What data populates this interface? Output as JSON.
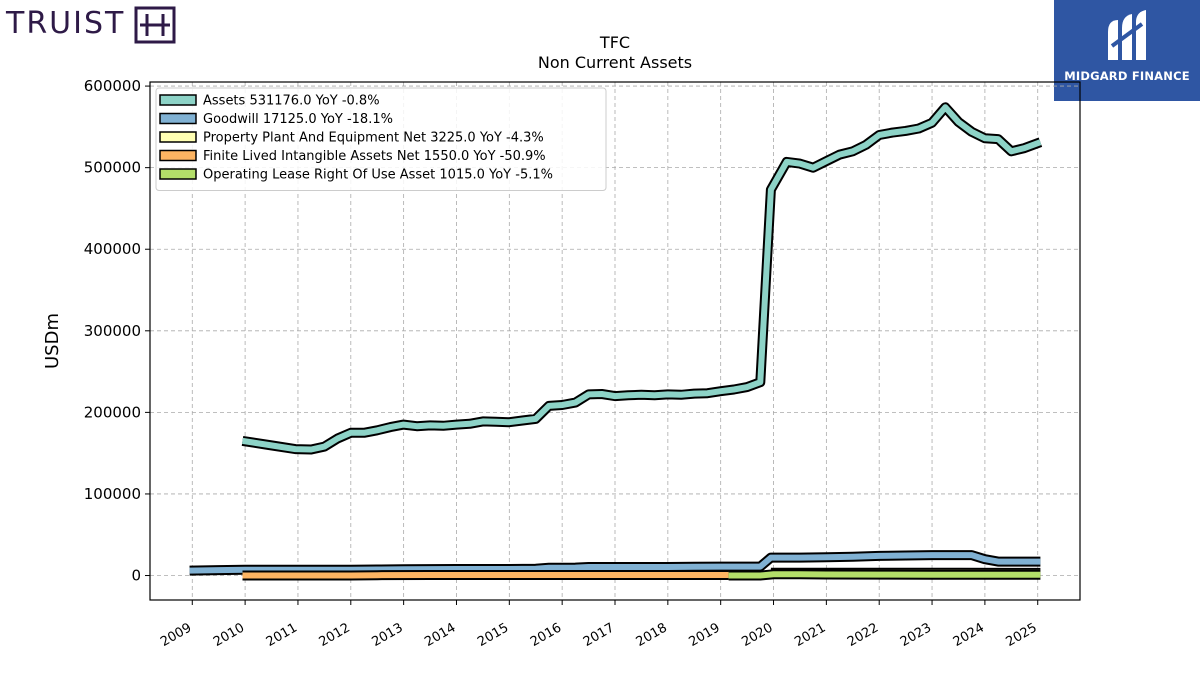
{
  "logos": {
    "left_text": "TRUIST",
    "left_icon": "truist-h-icon",
    "right_text": "MIDGARD FINANCE",
    "right_icon": "midgard-m-icon",
    "left_color": "#2e1a47",
    "right_bg": "#2f56a3"
  },
  "chart_data": {
    "type": "line",
    "title": "TFC",
    "subtitle": "Non Current  Assets",
    "xlabel": "",
    "ylabel": "USDm",
    "xlim": [
      2008.2,
      2025.8
    ],
    "ylim": [
      -30000,
      605000
    ],
    "yticks": [
      0,
      100000,
      200000,
      300000,
      400000,
      500000,
      600000
    ],
    "xticks": [
      2009,
      2010,
      2011,
      2012,
      2013,
      2014,
      2015,
      2016,
      2017,
      2018,
      2019,
      2020,
      2021,
      2022,
      2023,
      2024,
      2025
    ],
    "grid": true,
    "legend_position": "top-left",
    "series": [
      {
        "name": "Assets  531176.0 YoY -0.8%",
        "color": "#8dd3c7",
        "points": [
          [
            2009.95,
            165000
          ],
          [
            2010.45,
            160000
          ],
          [
            2010.95,
            155000
          ],
          [
            2011.25,
            154500
          ],
          [
            2011.5,
            158000
          ],
          [
            2011.75,
            168000
          ],
          [
            2012.0,
            175000
          ],
          [
            2012.25,
            175000
          ],
          [
            2012.5,
            178000
          ],
          [
            2012.75,
            182000
          ],
          [
            2013.0,
            185000
          ],
          [
            2013.25,
            183000
          ],
          [
            2013.5,
            184000
          ],
          [
            2013.75,
            183500
          ],
          [
            2014.0,
            185000
          ],
          [
            2014.25,
            186000
          ],
          [
            2014.5,
            189000
          ],
          [
            2014.75,
            188500
          ],
          [
            2015.0,
            188000
          ],
          [
            2015.25,
            190000
          ],
          [
            2015.5,
            192000
          ],
          [
            2015.75,
            208000
          ],
          [
            2016.0,
            209000
          ],
          [
            2016.25,
            212000
          ],
          [
            2016.5,
            222000
          ],
          [
            2016.75,
            222500
          ],
          [
            2017.0,
            220000
          ],
          [
            2017.25,
            221000
          ],
          [
            2017.5,
            221500
          ],
          [
            2017.75,
            221000
          ],
          [
            2018.0,
            222000
          ],
          [
            2018.25,
            221500
          ],
          [
            2018.5,
            223000
          ],
          [
            2018.75,
            223500
          ],
          [
            2019.0,
            226000
          ],
          [
            2019.25,
            228000
          ],
          [
            2019.5,
            231000
          ],
          [
            2019.75,
            237000
          ],
          [
            2019.95,
            473000
          ],
          [
            2020.25,
            507000
          ],
          [
            2020.5,
            505000
          ],
          [
            2020.75,
            500000
          ],
          [
            2021.0,
            508000
          ],
          [
            2021.25,
            516000
          ],
          [
            2021.5,
            520000
          ],
          [
            2021.75,
            528000
          ],
          [
            2022.0,
            540000
          ],
          [
            2022.25,
            543000
          ],
          [
            2022.5,
            545000
          ],
          [
            2022.75,
            548000
          ],
          [
            2023.0,
            555000
          ],
          [
            2023.25,
            574000
          ],
          [
            2023.5,
            556000
          ],
          [
            2023.75,
            544000
          ],
          [
            2024.0,
            536000
          ],
          [
            2024.25,
            535000
          ],
          [
            2024.5,
            520000
          ],
          [
            2024.75,
            524000
          ],
          [
            2025.05,
            531176
          ]
        ]
      },
      {
        "name": "Goodwill  17125.0 YoY -18.1%",
        "color": "#80b1d3",
        "points": [
          [
            2008.95,
            6100
          ],
          [
            2009.5,
            6600
          ],
          [
            2010.0,
            7000
          ],
          [
            2010.5,
            7000
          ],
          [
            2011.0,
            7000
          ],
          [
            2011.5,
            7000
          ],
          [
            2012.0,
            7100
          ],
          [
            2012.5,
            7400
          ],
          [
            2013.0,
            7800
          ],
          [
            2013.5,
            7900
          ],
          [
            2014.0,
            8000
          ],
          [
            2014.5,
            8000
          ],
          [
            2015.0,
            8000
          ],
          [
            2015.5,
            8400
          ],
          [
            2015.75,
            9500
          ],
          [
            2016.25,
            9700
          ],
          [
            2016.5,
            10400
          ],
          [
            2017.0,
            10400
          ],
          [
            2017.5,
            10400
          ],
          [
            2018.0,
            10400
          ],
          [
            2018.5,
            10800
          ],
          [
            2019.0,
            11000
          ],
          [
            2019.75,
            11000
          ],
          [
            2019.95,
            22000
          ],
          [
            2020.5,
            22000
          ],
          [
            2021.0,
            22500
          ],
          [
            2021.5,
            23000
          ],
          [
            2022.0,
            24000
          ],
          [
            2022.5,
            24500
          ],
          [
            2023.0,
            25000
          ],
          [
            2023.75,
            25000
          ],
          [
            2024.0,
            20000
          ],
          [
            2024.25,
            17125
          ],
          [
            2025.05,
            17125
          ]
        ]
      },
      {
        "name": "Property Plant And Equipment Net  3225.0 YoY -4.3%",
        "color": "#ffffb3",
        "points": [
          [
            2019.95,
            3400
          ],
          [
            2020.5,
            3400
          ],
          [
            2021.5,
            3300
          ],
          [
            2022.5,
            3300
          ],
          [
            2023.5,
            3300
          ],
          [
            2024.5,
            3225
          ],
          [
            2025.05,
            3225
          ]
        ]
      },
      {
        "name": "Finite Lived Intangible Assets Net  1550.0 YoY -50.9%",
        "color": "#fdb462",
        "points": [
          [
            2009.95,
            0
          ],
          [
            2012.0,
            0
          ],
          [
            2012.5,
            400
          ],
          [
            2013.5,
            600
          ],
          [
            2014.5,
            600
          ],
          [
            2015.5,
            600
          ],
          [
            2016.5,
            700
          ],
          [
            2017.5,
            600
          ],
          [
            2018.5,
            600
          ],
          [
            2019.15,
            700
          ]
        ]
      },
      {
        "name": "Operating Lease Right Of Use Asset  1015.0 YoY -5.1%",
        "color": "#b3de69",
        "points": [
          [
            2019.15,
            0
          ],
          [
            2019.75,
            0
          ],
          [
            2020.0,
            1500
          ],
          [
            2020.5,
            1500
          ],
          [
            2021.0,
            1200
          ],
          [
            2022.0,
            1100
          ],
          [
            2023.0,
            1000
          ],
          [
            2024.0,
            1050
          ],
          [
            2025.05,
            1015
          ]
        ]
      }
    ]
  }
}
